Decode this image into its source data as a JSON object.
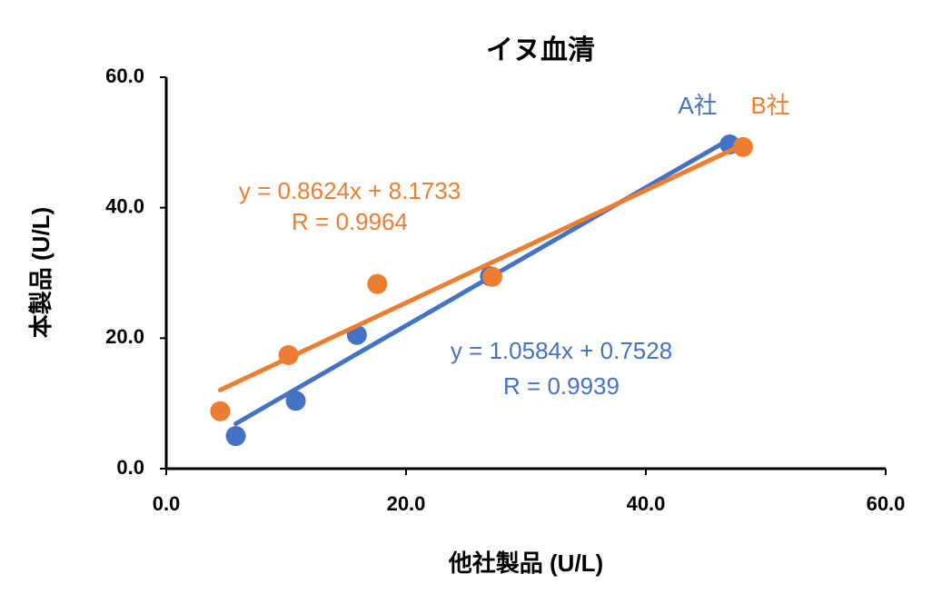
{
  "chart_data": {
    "type": "scatter",
    "title": "イヌ血清",
    "x_label": "他社製品 (U/L)",
    "y_label": "本製品 (U/L)",
    "xlim": [
      0,
      60
    ],
    "ylim": [
      0,
      60
    ],
    "xticks": [
      {
        "value": 0,
        "label": "0.0"
      },
      {
        "value": 20,
        "label": "20.0"
      },
      {
        "value": 40,
        "label": "40.0"
      },
      {
        "value": 60,
        "label": "60.0"
      }
    ],
    "yticks": [
      {
        "value": 0,
        "label": "0.0"
      },
      {
        "value": 20,
        "label": "20.0"
      },
      {
        "value": 40,
        "label": "40.0"
      },
      {
        "value": 60,
        "label": "60.0"
      }
    ],
    "series": [
      {
        "name": "A社",
        "color": "#4472c4",
        "x": [
          5.8,
          10.8,
          15.9,
          27.0,
          47.0
        ],
        "values": [
          5.0,
          10.4,
          20.5,
          29.5,
          49.7
        ],
        "trendline": {
          "slope": 1.0584,
          "intercept": 0.7528,
          "equation": "y = 1.0584x + 0.7528",
          "r_label": "R = 0.9939"
        }
      },
      {
        "name": "B社",
        "color": "#ed7d31",
        "x": [
          4.5,
          10.2,
          17.6,
          27.2,
          48.1
        ],
        "values": [
          8.8,
          17.4,
          28.3,
          29.4,
          49.3
        ],
        "trendline": {
          "slope": 0.8624,
          "intercept": 8.1733,
          "equation": "y = 0.8624x + 8.1733",
          "r_label": "R = 0.9964"
        }
      }
    ]
  }
}
